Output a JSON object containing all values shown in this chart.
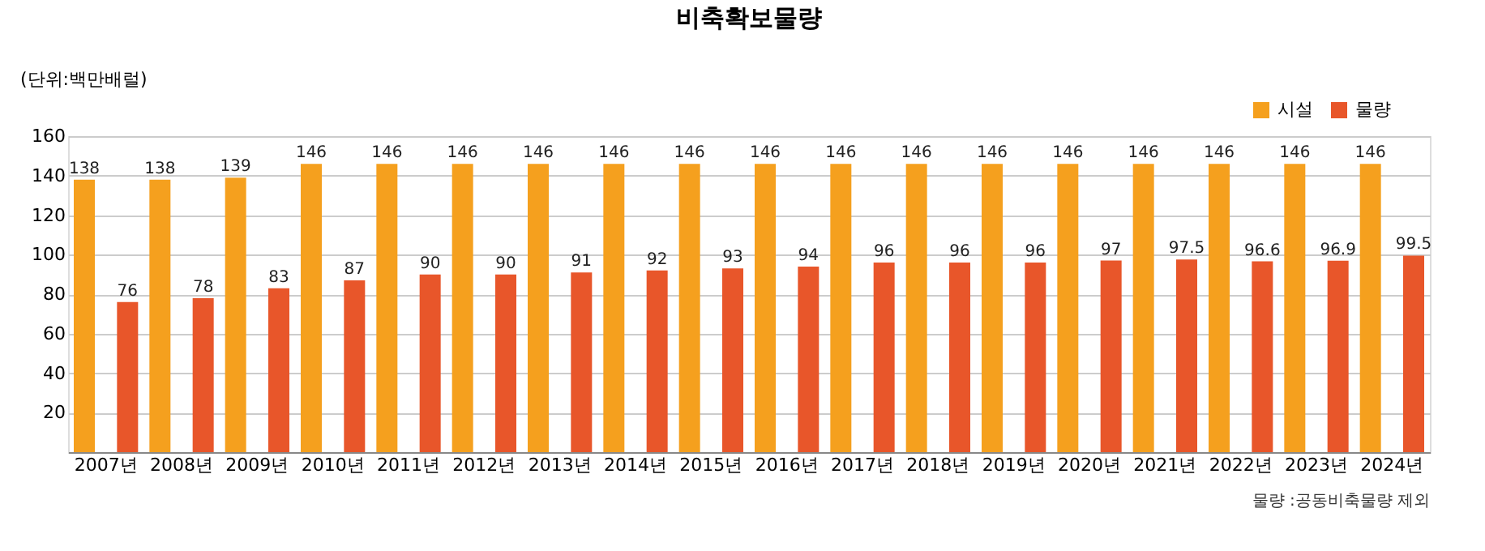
{
  "chart_data": {
    "type": "bar",
    "title": "비축확보물량",
    "ylabel": "(단위:백만배럴)",
    "categories": [
      "2007년",
      "2008년",
      "2009년",
      "2010년",
      "2011년",
      "2012년",
      "2013년",
      "2014년",
      "2015년",
      "2016년",
      "2017년",
      "2018년",
      "2019년",
      "2020년",
      "2021년",
      "2022년",
      "2023년",
      "2024년"
    ],
    "series": [
      {
        "name": "시설",
        "color": "#f5a01e",
        "values": [
          138,
          138,
          139,
          146,
          146,
          146,
          146,
          146,
          146,
          146,
          146,
          146,
          146,
          146,
          146,
          146,
          146,
          146
        ]
      },
      {
        "name": "물량",
        "color": "#e8562a",
        "values": [
          76,
          78,
          83,
          87,
          90,
          90,
          91,
          92,
          93,
          94,
          96,
          96,
          96,
          97,
          97.5,
          96.6,
          96.9,
          99.5
        ]
      }
    ],
    "ylim": [
      0,
      160
    ],
    "yticks": [
      20,
      40,
      60,
      80,
      100,
      120,
      140,
      160
    ],
    "grid": "y",
    "legend": "top right",
    "data_labels": true,
    "annotations": [
      "물량 :공동비축물량 제외"
    ]
  }
}
